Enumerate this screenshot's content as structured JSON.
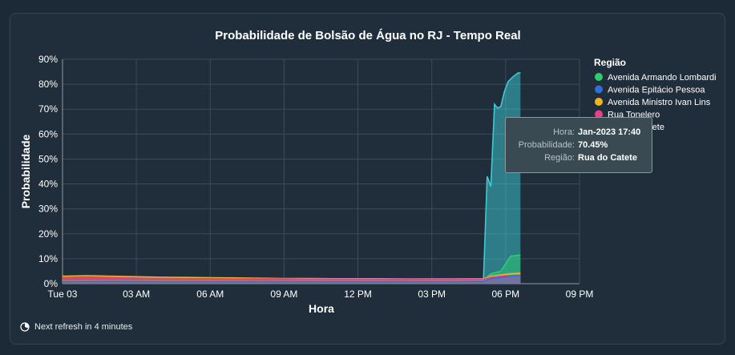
{
  "chart_data": {
    "type": "area",
    "title": "Probabilidade de Bolsão de Água no RJ - Tempo Real",
    "xlabel": "Hora",
    "ylabel": "Probabilidade",
    "x_ticks": [
      "Tue 03",
      "03 AM",
      "06 AM",
      "09 AM",
      "12 PM",
      "03 PM",
      "06 PM",
      "09 PM"
    ],
    "x_range_hours": [
      0,
      21
    ],
    "y_ticks": [
      "0%",
      "10%",
      "20%",
      "30%",
      "40%",
      "50%",
      "60%",
      "70%",
      "80%",
      "90%"
    ],
    "ylim": [
      0,
      90
    ],
    "grid": true,
    "legend_title": "Região",
    "legend_position": "right",
    "series": [
      {
        "name": "Avenida Armando Lombardi",
        "color": "#2ecc71",
        "x": [
          0,
          2,
          4,
          6,
          8,
          10,
          12,
          14,
          16,
          17.1,
          17.4,
          17.8,
          18.2,
          18.6
        ],
        "y": [
          1.2,
          1.3,
          1.2,
          1.2,
          1.1,
          1.2,
          1.2,
          1.1,
          1.2,
          1.3,
          4.0,
          5.0,
          11.0,
          11.5
        ]
      },
      {
        "name": "Avenida Epitácio Pessoa",
        "color": "#2f6fd6",
        "x": [
          0,
          2,
          4,
          6,
          8,
          10,
          12,
          14,
          16,
          17.1,
          17.4,
          17.8,
          18.2,
          18.6
        ],
        "y": [
          0.8,
          0.9,
          0.8,
          0.8,
          0.8,
          0.8,
          0.8,
          0.8,
          0.8,
          0.9,
          2.0,
          2.5,
          3.0,
          3.2
        ]
      },
      {
        "name": "Avenida Ministro Ivan Lins",
        "color": "#f0b323",
        "x": [
          0,
          1,
          2,
          3,
          4,
          5,
          6,
          7,
          8,
          9,
          10,
          11,
          12,
          13,
          14,
          15,
          16,
          17.1,
          17.4,
          17.8,
          18.2,
          18.6
        ],
        "y": [
          3.0,
          3.2,
          3.0,
          2.8,
          2.6,
          2.5,
          2.4,
          2.3,
          2.2,
          2.1,
          2.1,
          2.0,
          2.0,
          2.0,
          1.9,
          1.9,
          1.9,
          2.0,
          3.0,
          3.5,
          4.0,
          4.2
        ]
      },
      {
        "name": "Rua Tonelero",
        "color": "#e83e8c",
        "x": [
          0,
          1,
          2,
          3,
          4,
          5,
          6,
          7,
          8,
          9,
          10,
          11,
          12,
          13,
          14,
          15,
          16,
          17.1,
          17.4,
          17.8,
          18.2,
          18.6
        ],
        "y": [
          2.2,
          2.4,
          2.3,
          2.2,
          2.1,
          2.0,
          2.0,
          1.9,
          1.9,
          1.9,
          1.8,
          1.8,
          1.8,
          1.8,
          1.8,
          1.7,
          1.7,
          1.8,
          2.5,
          3.0,
          3.2,
          3.4
        ]
      },
      {
        "name": "Rua do Catete",
        "color": "#3ec9d6",
        "x": [
          0,
          2,
          4,
          6,
          8,
          10,
          12,
          14,
          16,
          17.1,
          17.25,
          17.4,
          17.55,
          17.667,
          17.8,
          17.95,
          18.1,
          18.3,
          18.5,
          18.6
        ],
        "y": [
          1.0,
          1.1,
          1.0,
          1.0,
          1.0,
          1.0,
          1.0,
          1.0,
          1.0,
          1.5,
          43.0,
          39.0,
          72.0,
          70.45,
          71.0,
          77.0,
          81.0,
          83.0,
          84.5,
          84.6
        ]
      }
    ],
    "tooltip": {
      "hora_label": "Hora:",
      "hora_value": "Jan-2023 17:40",
      "prob_label": "Probabilidade:",
      "prob_value": "70.45%",
      "regiao_label": "Região:",
      "regiao_value": "Rua do Catete"
    }
  },
  "footer": {
    "refresh_text": "Next refresh in 4 minutes"
  }
}
